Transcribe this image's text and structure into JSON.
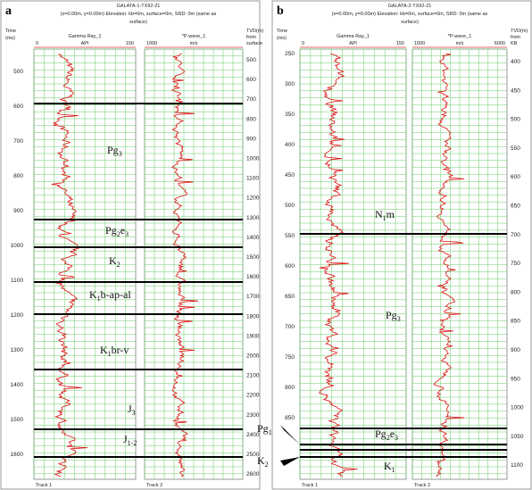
{
  "panels": [
    {
      "letter": "a",
      "header": [
        "GALATA-1-TX92-21",
        "(x=0.00m, y=0.00m) Elevation: kb=0m, surface=0m, SRD: 0m (same as",
        "surface)"
      ],
      "time_label": [
        "Time",
        "(ms)"
      ],
      "track1": {
        "name": "Gamma Ray_1",
        "min": "0",
        "unit": "API",
        "max": "150"
      },
      "track2": {
        "name": "*P-wave_1",
        "min": "1000",
        "unit": "m/s"
      },
      "depth_label": [
        "TVD(m)",
        "from",
        "surface"
      ],
      "time_ticks": [
        500,
        600,
        700,
        800,
        900,
        1000,
        1100,
        1200,
        1300,
        1400,
        1500,
        1600
      ],
      "depth_ticks": [
        500,
        600,
        700,
        800,
        900,
        1000,
        1100,
        1200,
        1300,
        1400,
        1500,
        1600,
        1700,
        1800,
        1900,
        2000,
        2100,
        2200,
        2300,
        2400,
        2500,
        2600
      ],
      "formations": [
        {
          "parts": [
            "Pg",
            "3"
          ]
        },
        {
          "parts": [
            "Pg",
            "2",
            "e",
            "3"
          ]
        },
        {
          "parts": [
            "K",
            "2"
          ]
        },
        {
          "parts": [
            "K",
            "1",
            "b-ap-al"
          ]
        },
        {
          "parts": [
            "K",
            "1",
            "br-v"
          ]
        },
        {
          "parts": [
            "J",
            "3"
          ]
        },
        {
          "parts": [
            "J",
            "1-2"
          ]
        }
      ],
      "side_labels": [],
      "footer": [
        "Track 1",
        "Track 2"
      ]
    },
    {
      "letter": "b",
      "header": [
        "GALATA-2-TX92-21",
        "(x=0.00m, y=0.00m) Elevation: kb=0m, surface=0m, SRD: 0m (same as",
        "surface)"
      ],
      "time_label": [
        "Time",
        "(ms)"
      ],
      "track1": {
        "name": "Gamma Ray_1",
        "min": "0",
        "unit": "API",
        "max": "150"
      },
      "track2": {
        "name": "*P-wave_1",
        "min": "1000",
        "unit": "m/s",
        "max": "6000"
      },
      "depth_label": [
        "TVD(m)",
        "from",
        "KB"
      ],
      "time_ticks": [
        250,
        300,
        350,
        400,
        450,
        500,
        550,
        600,
        650,
        700,
        750,
        800,
        850
      ],
      "depth_ticks": [
        400,
        450,
        500,
        550,
        600,
        650,
        700,
        750,
        800,
        850,
        900,
        950,
        1000,
        1050,
        1100
      ],
      "formations": [
        {
          "parts": [
            "N",
            "1",
            "m"
          ]
        },
        {
          "parts": [
            "Pg",
            "3"
          ]
        },
        {
          "parts": [
            "Pg",
            "2",
            "e",
            "3"
          ]
        },
        {
          "parts": [
            "K",
            "1"
          ]
        }
      ],
      "side_labels": [
        {
          "parts": [
            "Pg",
            "1"
          ]
        },
        {
          "parts": [
            "K",
            "2"
          ]
        }
      ],
      "footer": [
        "Track 1",
        "Track 2"
      ]
    }
  ]
}
